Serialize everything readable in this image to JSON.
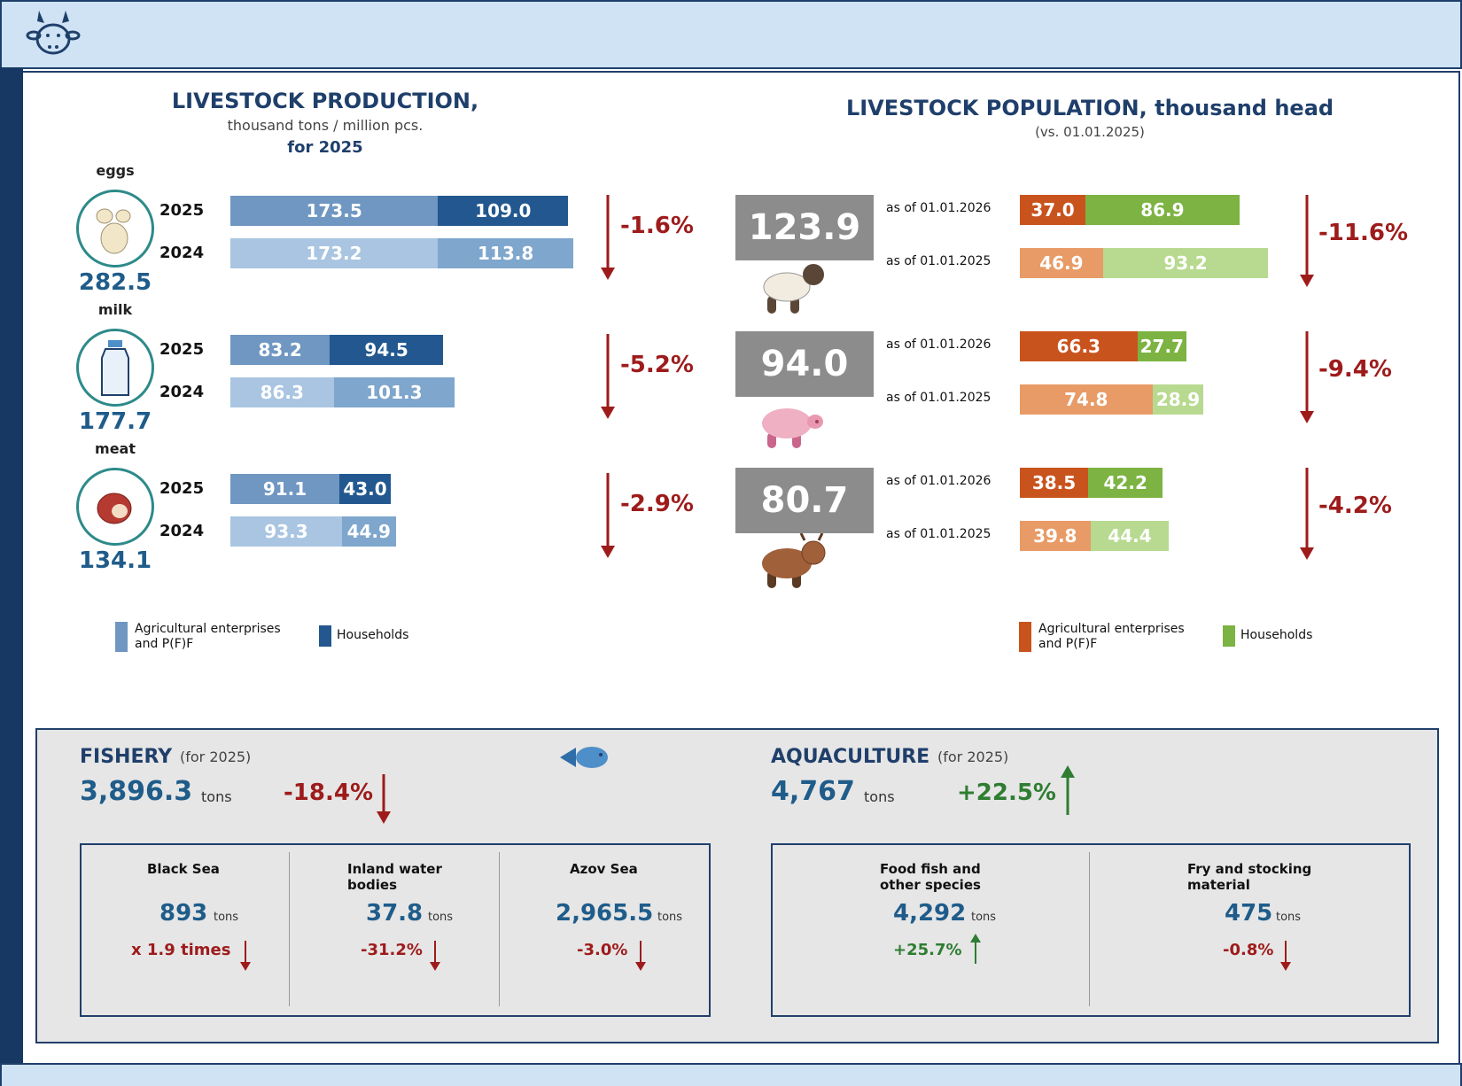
{
  "header": {
    "logo_icon": "cow-head-icon"
  },
  "production": {
    "title": "LIVESTOCK PRODUCTION,",
    "subtitle": "thousand tons / million pcs.",
    "period": "for 2025",
    "items": [
      {
        "label": "eggs",
        "icon": "eggs-icon",
        "total": "282.5",
        "change": "-1.6%",
        "rows": [
          {
            "year": "2025",
            "enterprises": 173.5,
            "households": 109.0,
            "ent_label": "173.5",
            "hh_label": "109.0"
          },
          {
            "year": "2024",
            "enterprises": 173.2,
            "households": 113.8,
            "ent_label": "173.2",
            "hh_label": "113.8"
          }
        ]
      },
      {
        "label": "milk",
        "icon": "milk-bottle-icon",
        "total": "177.7",
        "change": "-5.2%",
        "rows": [
          {
            "year": "2025",
            "enterprises": 83.2,
            "households": 94.5,
            "ent_label": "83.2",
            "hh_label": "94.5"
          },
          {
            "year": "2024",
            "enterprises": 86.3,
            "households": 101.3,
            "ent_label": "86.3",
            "hh_label": "101.3"
          }
        ]
      },
      {
        "label": "meat",
        "icon": "meat-icon",
        "total": "134.1",
        "change": "-2.9%",
        "rows": [
          {
            "year": "2025",
            "enterprises": 91.1,
            "households": 43.0,
            "ent_label": "91.1",
            "hh_label": "43.0"
          },
          {
            "year": "2024",
            "enterprises": 93.3,
            "households": 44.9,
            "ent_label": "93.3",
            "hh_label": "44.9"
          }
        ]
      }
    ],
    "legend": {
      "enterprises": "Agricultural enterprises and P(F)F",
      "households": "Households"
    },
    "colors": {
      "ent_current": "#6f97c2",
      "hh_current": "#22588f",
      "ent_prev": "#a9c5e1",
      "hh_prev": "#7fa6cc"
    }
  },
  "population": {
    "title": "LIVESTOCK POPULATION, thousand head",
    "subtitle": "(vs. 01.01.2025)",
    "items": [
      {
        "total": "123.9",
        "icon": "sheep-icon",
        "change": "-11.6%",
        "rows": [
          {
            "date": "as of 01.01.2026",
            "enterprises": 37.0,
            "households": 86.9,
            "ent_label": "37.0",
            "hh_label": "86.9"
          },
          {
            "date": "as of 01.01.2025",
            "enterprises": 46.9,
            "households": 93.2,
            "ent_label": "46.9",
            "hh_label": "93.2"
          }
        ]
      },
      {
        "total": "94.0",
        "icon": "pig-icon",
        "change": "-9.4%",
        "rows": [
          {
            "date": "as of 01.01.2026",
            "enterprises": 66.3,
            "households": 27.7,
            "ent_label": "66.3",
            "hh_label": "27.7"
          },
          {
            "date": "as of 01.01.2025",
            "enterprises": 74.8,
            "households": 28.9,
            "ent_label": "74.8",
            "hh_label": "28.9"
          }
        ]
      },
      {
        "total": "80.7",
        "icon": "cow-icon",
        "change": "-4.2%",
        "rows": [
          {
            "date": "as of 01.01.2026",
            "enterprises": 38.5,
            "households": 42.2,
            "ent_label": "38.5",
            "hh_label": "42.2"
          },
          {
            "date": "as of 01.01.2025",
            "enterprises": 39.8,
            "households": 44.4,
            "ent_label": "39.8",
            "hh_label": "44.4"
          }
        ]
      }
    ],
    "legend": {
      "enterprises": "Agricultural enterprises and P(F)F",
      "households": "Households"
    },
    "colors": {
      "ent_current": "#c9531d",
      "hh_current": "#7cb342",
      "ent_prev": "#e89b66",
      "hh_prev": "#b8da90"
    }
  },
  "fishery": {
    "title": "FISHERY",
    "period": "(for 2025)",
    "total": "3,896.3",
    "unit": "tons",
    "change": "-18.4%",
    "icon": "fish-icon",
    "areas": [
      {
        "name": "Black Sea",
        "value": "893",
        "unit": "tons",
        "change": "x 1.9 times"
      },
      {
        "name": "Inland water bodies",
        "value": "37.8",
        "unit": "tons",
        "change": "-31.2%"
      },
      {
        "name": "Azov Sea",
        "value": "2,965.5",
        "unit": "tons",
        "change": "-3.0%"
      }
    ]
  },
  "aquaculture": {
    "title": "AQUACULTURE",
    "period": "(for 2025)",
    "total": "4,767",
    "unit": "tons",
    "change": "+22.5%",
    "items": [
      {
        "name": "Food fish and other species",
        "value": "4,292",
        "unit": "tons",
        "change": "+25.7%"
      },
      {
        "name": "Fry and stocking material",
        "value": "475",
        "unit": "tons",
        "change": "-0.8%"
      }
    ]
  },
  "chart_data": [
    {
      "type": "bar",
      "title": "LIVESTOCK PRODUCTION,",
      "categories": [
        "eggs 2025",
        "eggs 2024",
        "milk 2025",
        "milk 2024",
        "meat 2025",
        "meat 2024"
      ],
      "series": [
        {
          "name": "Agricultural enterprises and P(F)F",
          "values": [
            173.5,
            173.2,
            83.2,
            86.3,
            91.1,
            93.3
          ]
        },
        {
          "name": "Households",
          "values": [
            109.0,
            113.8,
            94.5,
            101.3,
            43.0,
            44.9
          ]
        }
      ]
    },
    {
      "type": "bar",
      "title": "LIVESTOCK POPULATION, thousand head",
      "categories": [
        "as of 01.01.2026",
        "as of 01.01.2025",
        "as of 01.01.2026",
        "as of 01.01.2025",
        "as of 01.01.2026",
        "as of 01.01.2025"
      ],
      "series": [
        {
          "name": "Agricultural enterprises and P(F)F",
          "values": [
            37.0,
            46.9,
            66.3,
            74.8,
            38.5,
            39.8
          ]
        },
        {
          "name": "Households",
          "values": [
            86.9,
            93.2,
            27.7,
            28.9,
            42.2,
            44.4
          ]
        }
      ]
    }
  ]
}
